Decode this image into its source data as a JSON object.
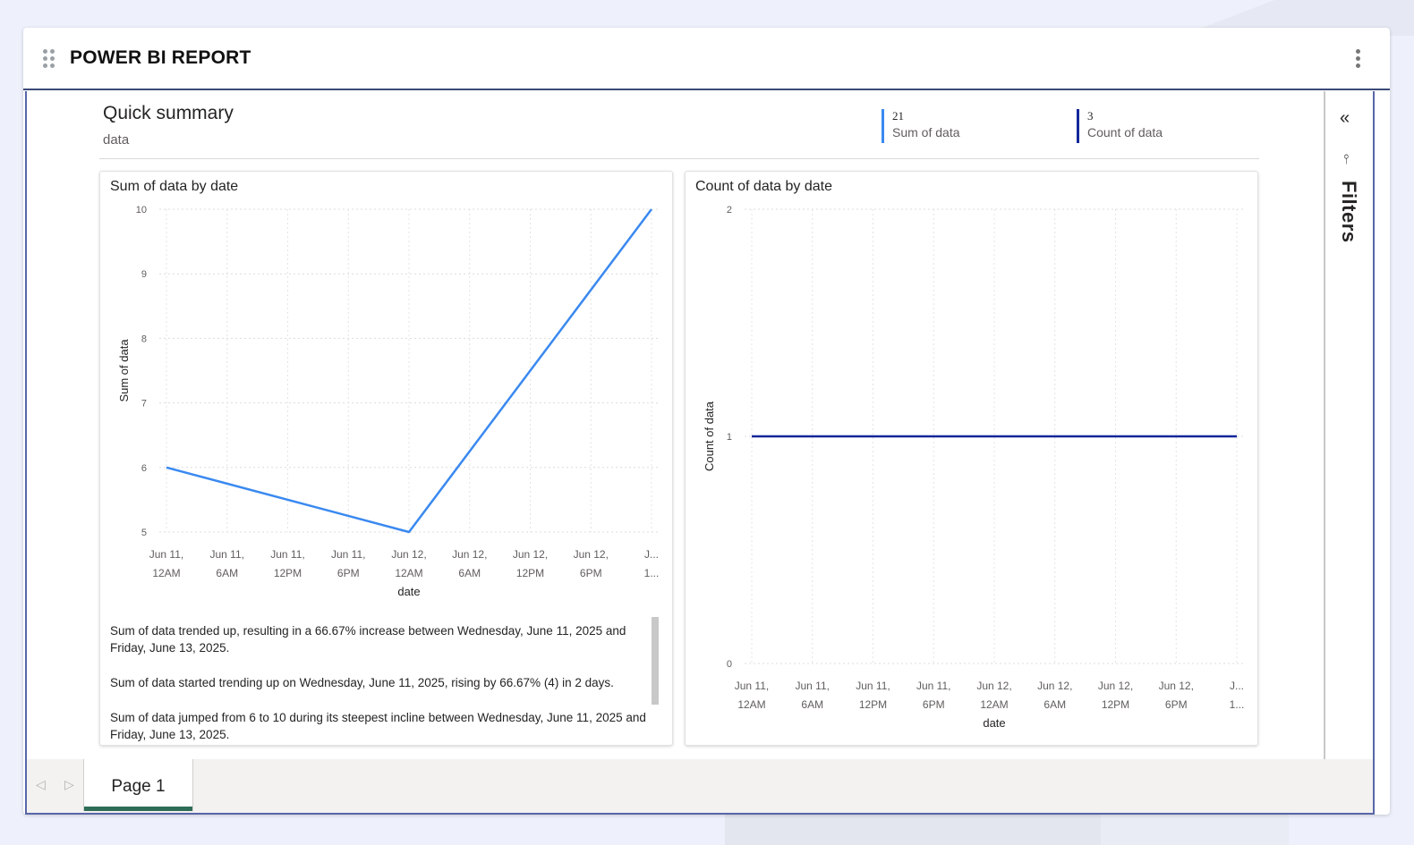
{
  "header": {
    "title": "POWER BI REPORT"
  },
  "summary": {
    "title": "Quick summary",
    "subtitle": "data",
    "kpis": [
      {
        "value": "21",
        "label": "Sum of data",
        "color": "#3a89f0"
      },
      {
        "value": "3",
        "label": "Count of data",
        "color": "#13269a"
      }
    ]
  },
  "chart_data": [
    {
      "type": "line",
      "title": "Sum of data by date",
      "xlabel": "date",
      "ylabel": "Sum of data",
      "x_ticks": [
        [
          "Jun 11,",
          "12AM"
        ],
        [
          "Jun 11,",
          "6AM"
        ],
        [
          "Jun 11,",
          "12PM"
        ],
        [
          "Jun 11,",
          "6PM"
        ],
        [
          "Jun 12,",
          "12AM"
        ],
        [
          "Jun 12,",
          "6AM"
        ],
        [
          "Jun 12,",
          "12PM"
        ],
        [
          "Jun 12,",
          "6PM"
        ],
        [
          "J...",
          "1..."
        ]
      ],
      "y_ticks": [
        "10",
        "9",
        "8",
        "7",
        "6",
        "5"
      ],
      "ylim": [
        5,
        10
      ],
      "grid": true,
      "series": [
        {
          "color": "#3a89f0",
          "x": [
            "Jun 11, 12AM",
            "Jun 12, 12AM",
            "Jun 13, 12AM"
          ],
          "values": [
            6,
            5,
            10
          ]
        }
      ]
    },
    {
      "type": "line",
      "title": "Count of data by date",
      "xlabel": "date",
      "ylabel": "Count of data",
      "x_ticks": [
        [
          "Jun 11,",
          "12AM"
        ],
        [
          "Jun 11,",
          "6AM"
        ],
        [
          "Jun 11,",
          "12PM"
        ],
        [
          "Jun 11,",
          "6PM"
        ],
        [
          "Jun 12,",
          "12AM"
        ],
        [
          "Jun 12,",
          "6AM"
        ],
        [
          "Jun 12,",
          "12PM"
        ],
        [
          "Jun 12,",
          "6PM"
        ],
        [
          "J...",
          "1..."
        ]
      ],
      "y_ticks": [
        "2",
        "1",
        "0"
      ],
      "ylim": [
        0,
        2
      ],
      "grid": true,
      "series": [
        {
          "color": "#13269a",
          "x": [
            "Jun 11, 12AM",
            "Jun 12, 12AM",
            "Jun 13, 12AM"
          ],
          "values": [
            1,
            1,
            1
          ]
        }
      ]
    }
  ],
  "narrative": {
    "paragraphs": [
      "Sum of data trended up, resulting in a 66.67% increase between Wednesday, June 11, 2025 and Friday, June 13, 2025.",
      "Sum of data started trending up on Wednesday, June 11, 2025, rising by 66.67% (4) in 2 days.",
      "Sum of data jumped from 6 to 10 during its steepest incline between Wednesday, June 11, 2025 and Friday, June 13, 2025."
    ]
  },
  "filters": {
    "label": "Filters",
    "collapse_icon": "«",
    "filter_icon": "⫯"
  },
  "pages": {
    "prev_icon": "◁",
    "next_icon": "▷",
    "tabs": [
      {
        "label": "Page 1",
        "active": true,
        "accent": "#2e6d57"
      }
    ]
  }
}
